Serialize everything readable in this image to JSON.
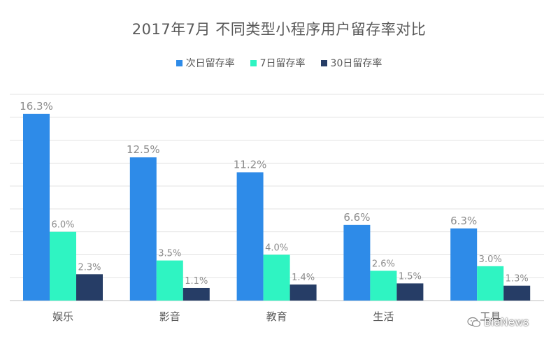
{
  "chart_data": {
    "type": "bar",
    "title": "2017年7月 不同类型小程序用户留存率对比",
    "categories": [
      "娱乐",
      "影音",
      "教育",
      "生活",
      "工具"
    ],
    "series": [
      {
        "name": "次日留存率",
        "color": "#2e8be8",
        "values": [
          16.3,
          12.5,
          11.2,
          6.6,
          6.3
        ]
      },
      {
        "name": "7日留存率",
        "color": "#2ff4c2",
        "values": [
          6.0,
          3.5,
          4.0,
          2.6,
          3.0
        ]
      },
      {
        "name": "30日留存率",
        "color": "#263d66",
        "values": [
          2.3,
          1.1,
          1.4,
          1.5,
          1.3
        ]
      }
    ],
    "value_suffix": "%",
    "ylim": [
      0,
      18
    ],
    "grid": true,
    "legend_position": "top-center"
  },
  "watermark": {
    "text": "BiaNews",
    "icon": "wechat-icon"
  }
}
